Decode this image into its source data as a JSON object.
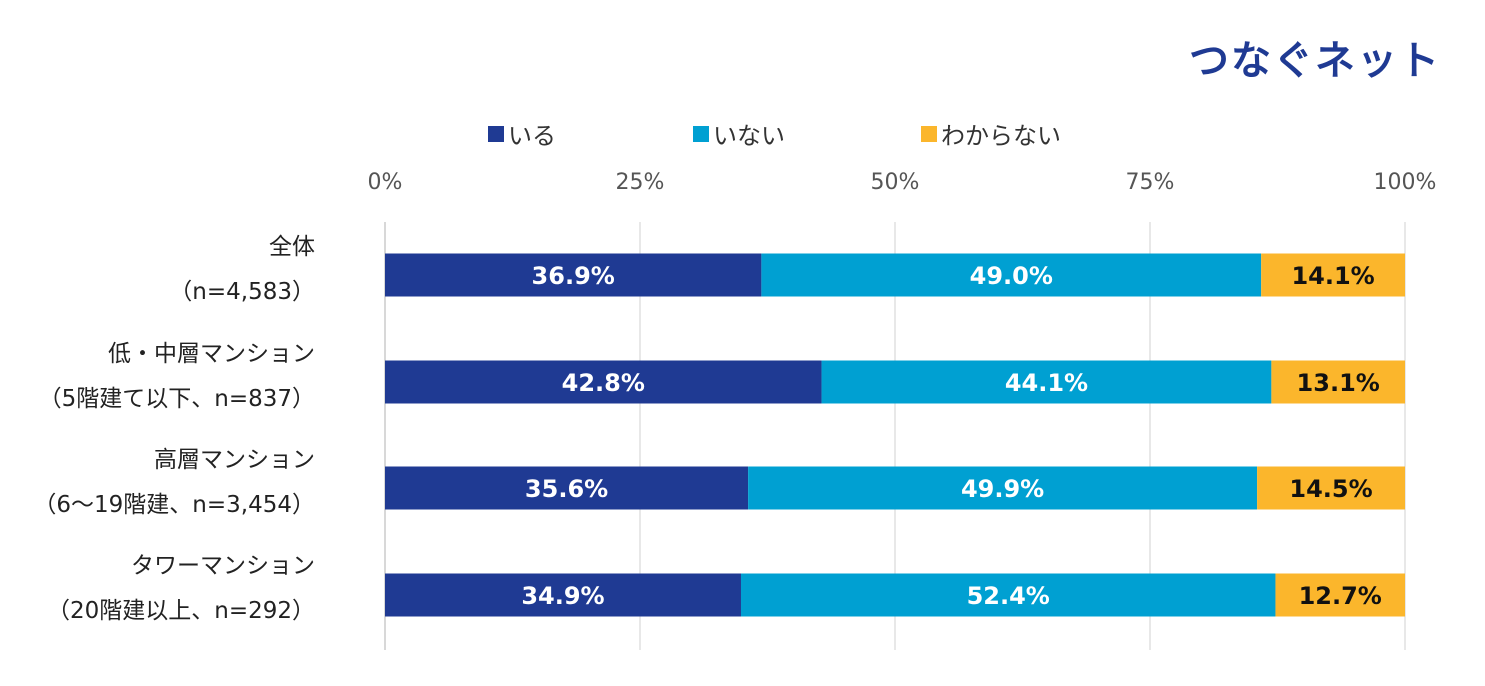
{
  "brand": {
    "logo_text": "つなぐネット"
  },
  "chart_data": {
    "type": "bar",
    "orientation": "horizontal",
    "stacked": "percent",
    "categories": [
      {
        "line1": "全体",
        "line2": "（n=4,583）"
      },
      {
        "line1": "低・中層マンション",
        "line2": "（5階建て以下、n=837）"
      },
      {
        "line1": "高層マンション",
        "line2": "（6～19階建、n=3,454）"
      },
      {
        "line1": "タワーマンション",
        "line2": "（20階建以上、n=292）"
      }
    ],
    "series": [
      {
        "name": "いる",
        "color": "#1f3a93",
        "label_color": "#ffffff",
        "values": [
          36.9,
          42.8,
          35.6,
          34.9
        ],
        "labels": [
          "36.9%",
          "42.8%",
          "35.6%",
          "34.9%"
        ]
      },
      {
        "name": "いない",
        "color": "#00a0d2",
        "label_color": "#ffffff",
        "values": [
          49.0,
          44.1,
          49.9,
          52.4
        ],
        "labels": [
          "49.0%",
          "44.1%",
          "49.9%",
          "52.4%"
        ]
      },
      {
        "name": "わからない",
        "color": "#fbb62c",
        "label_color": "#111111",
        "values": [
          14.1,
          13.1,
          14.5,
          12.7
        ],
        "labels": [
          "14.1%",
          "13.1%",
          "14.5%",
          "12.7%"
        ]
      }
    ],
    "x_ticks": [
      "0%",
      "25%",
      "50%",
      "75%",
      "100%"
    ],
    "xlim": [
      0,
      100
    ],
    "grid": true,
    "legend_position": "top"
  }
}
